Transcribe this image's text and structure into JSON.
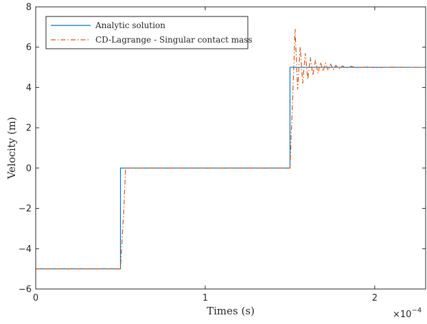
{
  "chart_data": {
    "type": "line",
    "xlabel": "Times (s)",
    "ylabel": "Velocity (m)",
    "x_multiplier": "×10",
    "x_multiplier_exponent": "−4",
    "xlim": [
      0,
      2.3
    ],
    "ylim": [
      -6,
      8
    ],
    "xticks": [
      {
        "value": 0,
        "label": "0"
      },
      {
        "value": 1,
        "label": "1"
      },
      {
        "value": 2,
        "label": "2"
      }
    ],
    "yticks": [
      {
        "value": -6,
        "label": "−6"
      },
      {
        "value": -4,
        "label": "−4"
      },
      {
        "value": -2,
        "label": "−2"
      },
      {
        "value": 0,
        "label": "0"
      },
      {
        "value": 2,
        "label": "2"
      },
      {
        "value": 4,
        "label": "4"
      },
      {
        "value": 6,
        "label": "6"
      },
      {
        "value": 8,
        "label": "8"
      }
    ],
    "grid": false,
    "legend_position": "top-left",
    "series": [
      {
        "name": "Analytic solution",
        "color": "#0072BD",
        "style": "solid",
        "x": [
          0,
          0.5,
          0.5,
          1.5,
          1.5,
          2.3
        ],
        "y": [
          -5,
          -5,
          0,
          0,
          5,
          5
        ]
      },
      {
        "name": "CD-Lagrange - Singular contact mass",
        "color": "#D95319",
        "style": "dashdot",
        "x": [
          0,
          0.5,
          0.52,
          0.53,
          1.5,
          1.52,
          1.53,
          1.545,
          1.56,
          1.575,
          1.59,
          1.605,
          1.62,
          1.635,
          1.65,
          1.665,
          1.68,
          1.695,
          1.71,
          1.725,
          1.74,
          1.755,
          1.77,
          1.79,
          1.81,
          1.83,
          1.86,
          1.9,
          1.95,
          2.0,
          2.1,
          2.2,
          2.3
        ],
        "y": [
          -5,
          -5,
          -2,
          0,
          0,
          4.5,
          6.9,
          3.9,
          6.0,
          4.2,
          5.7,
          4.4,
          5.5,
          4.6,
          5.35,
          4.7,
          5.25,
          4.8,
          5.2,
          4.85,
          5.15,
          4.9,
          5.1,
          4.92,
          5.07,
          4.95,
          5.05,
          4.97,
          5.03,
          4.98,
          5.01,
          5.0,
          5.0
        ]
      }
    ]
  }
}
